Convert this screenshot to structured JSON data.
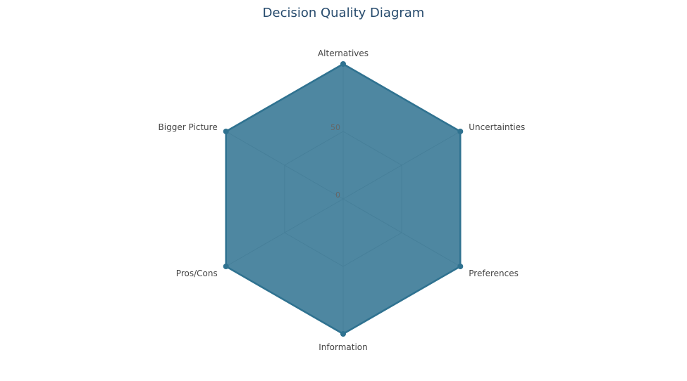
{
  "chart_data": {
    "type": "radar",
    "title": "Decision Quality Diagram",
    "categories": [
      "Alternatives",
      "Uncertainties",
      "Preferences",
      "Information",
      "Pros/Cons",
      "Bigger Picture"
    ],
    "series": [
      {
        "values": [
          100,
          100,
          100,
          100,
          100,
          100
        ],
        "color": "#2f7290",
        "fill_opacity": 0.85
      }
    ],
    "radial_ticks": [
      "0",
      "50"
    ],
    "rlim": [
      0,
      100
    ],
    "grid": true,
    "grid_shape": "polygon",
    "legend": "none"
  }
}
